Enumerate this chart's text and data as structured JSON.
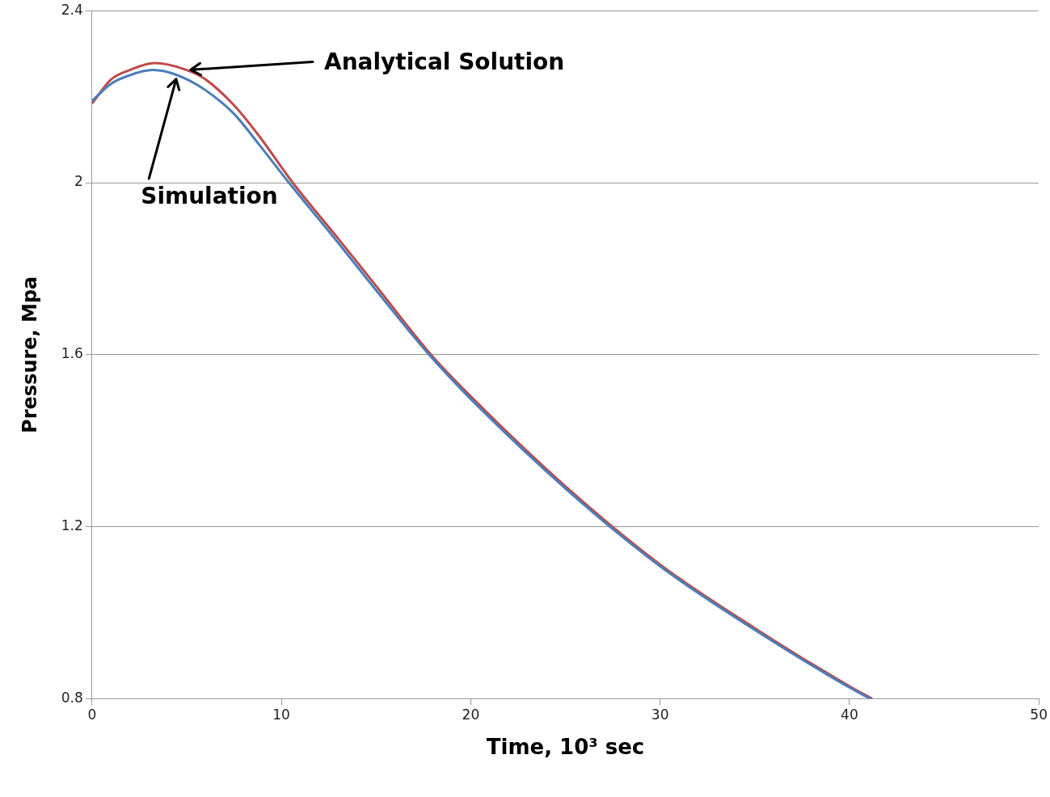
{
  "chart_data": {
    "type": "line",
    "xlabel": "Time, 10³ sec",
    "ylabel": "Pressure, Mpa",
    "xlim": [
      0,
      50
    ],
    "xticks": [
      0,
      10,
      20,
      30,
      40,
      50
    ],
    "ylim": [
      0.8,
      2.4
    ],
    "yticks": [
      0.8,
      1.2,
      1.6,
      2,
      2.4
    ],
    "grid": "y",
    "legend": false,
    "marker": "none",
    "line_style": "solid",
    "series": [
      {
        "name": "Simulation",
        "color": "#4a7ebb",
        "x": [
          0,
          1,
          2,
          3.2,
          4.5,
          6,
          7.5,
          8.8,
          10.4,
          13,
          15,
          17.8,
          20,
          25,
          30,
          35,
          40,
          41.1
        ],
        "values": [
          2.19,
          2.23,
          2.25,
          2.262,
          2.25,
          2.215,
          2.16,
          2.09,
          2.0,
          1.86,
          1.75,
          1.6,
          1.497,
          1.289,
          1.108,
          0.96,
          0.826,
          0.8
        ]
      },
      {
        "name": "Analytical Solution",
        "color": "#be4b48",
        "x": [
          0,
          1,
          2,
          3.3,
          5,
          6,
          7.5,
          8.8,
          10.6,
          13,
          15,
          17.9,
          20,
          25,
          30,
          35,
          40,
          41.2
        ],
        "values": [
          2.184,
          2.24,
          2.262,
          2.278,
          2.262,
          2.24,
          2.18,
          2.11,
          2.0,
          1.87,
          1.76,
          1.6,
          1.503,
          1.294,
          1.112,
          0.964,
          0.829,
          0.8
        ]
      }
    ]
  }
}
